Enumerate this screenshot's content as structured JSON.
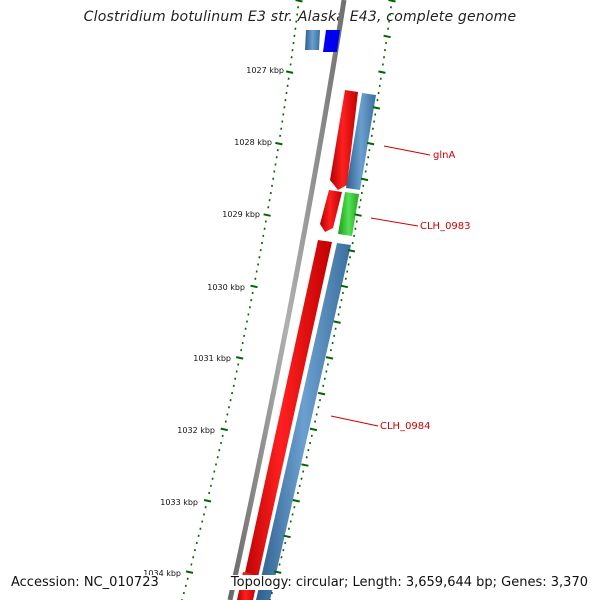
{
  "title": "Clostridium botulinum E3 str. Alaska E43, complete genome",
  "footer": {
    "accession": "Accession: NC_010723",
    "summary": "Topology: circular; Length: 3,659,644 bp; Genes: 3,370"
  },
  "ruler": [
    {
      "label": "1027 kbp"
    },
    {
      "label": "1028 kbp"
    },
    {
      "label": "1029 kbp"
    },
    {
      "label": "1030 kbp"
    },
    {
      "label": "1031 kbp"
    },
    {
      "label": "1032 kbp"
    },
    {
      "label": "1033 kbp"
    },
    {
      "label": "1034 kbp"
    }
  ],
  "gene_labels": [
    {
      "name": "glnA"
    },
    {
      "name": "CLH_0983"
    },
    {
      "name": "CLH_0984"
    }
  ],
  "colors": {
    "forward_cds": "#ff0000",
    "reverse_track": "#4682b4",
    "rna_gene": "#33cc33",
    "top_gene": "#0000ff",
    "backbone": "#808080",
    "ticks": "#006600",
    "label": "#cc0000"
  }
}
